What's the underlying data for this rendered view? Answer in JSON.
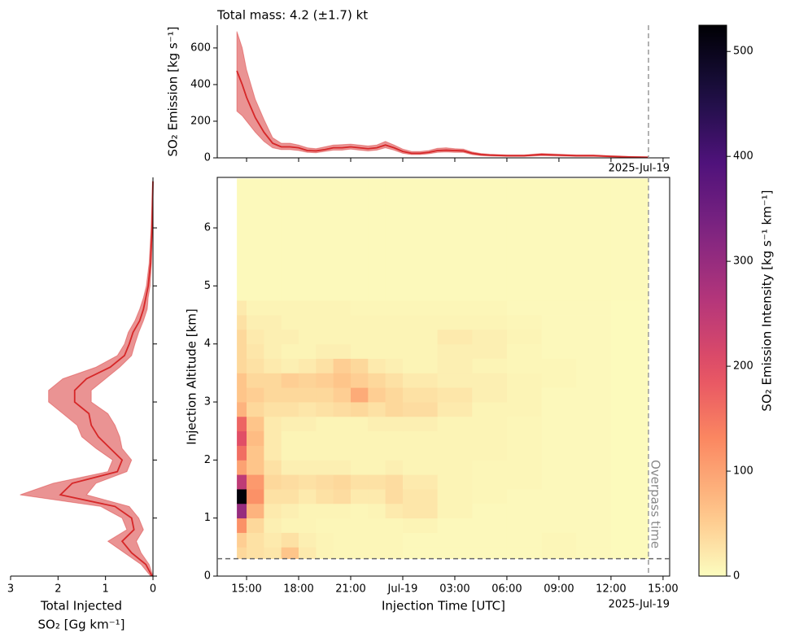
{
  "chart_data": [
    {
      "type": "line",
      "title": "Total mass: 4.2 (±1.7) kt",
      "ylabel": "SO₂ Emission [kg s⁻¹]",
      "x": [
        14.44,
        14.75,
        15.0,
        15.5,
        16.0,
        16.5,
        17.0,
        17.5,
        18.0,
        18.5,
        19.0,
        19.5,
        20.0,
        20.5,
        21.0,
        21.5,
        22.0,
        22.5,
        23.0,
        23.5,
        24.0,
        24.5,
        25.0,
        25.5,
        26.0,
        26.5,
        27.0,
        27.5,
        28.0,
        28.5,
        29.0,
        30.0,
        31.0,
        32.0,
        33.0,
        34.0,
        35.0,
        36.0,
        37.0,
        38.16
      ],
      "values": [
        475,
        400,
        330,
        220,
        140,
        80,
        60,
        60,
        55,
        40,
        38,
        45,
        55,
        55,
        60,
        55,
        50,
        55,
        70,
        55,
        35,
        25,
        25,
        30,
        40,
        42,
        40,
        38,
        25,
        18,
        15,
        12,
        12,
        18,
        15,
        12,
        12,
        8,
        5,
        3
      ],
      "lower": [
        255,
        230,
        200,
        140,
        90,
        55,
        45,
        45,
        40,
        30,
        28,
        35,
        42,
        42,
        48,
        42,
        38,
        42,
        55,
        42,
        25,
        18,
        18,
        22,
        30,
        32,
        30,
        30,
        18,
        12,
        10,
        8,
        8,
        12,
        10,
        8,
        8,
        5,
        3,
        2
      ],
      "upper": [
        690,
        600,
        480,
        320,
        210,
        110,
        80,
        80,
        70,
        55,
        50,
        60,
        70,
        72,
        75,
        70,
        65,
        70,
        90,
        70,
        48,
        35,
        35,
        40,
        52,
        55,
        50,
        48,
        32,
        24,
        20,
        16,
        16,
        24,
        20,
        16,
        16,
        11,
        8,
        5
      ],
      "color": "#d62728",
      "xlim": [
        13.31,
        39.38
      ],
      "ylim": [
        0,
        724
      ],
      "yticks": [
        0,
        200,
        400,
        600
      ],
      "x_offset_label": "2025-Jul-19",
      "vline": 38.16
    },
    {
      "type": "heatmap",
      "xlabel": "Injection Time [UTC]",
      "ylabel": "Injection Altitude [km]",
      "x_edges": [
        14.44,
        15,
        16,
        17,
        18,
        19,
        20,
        21,
        22,
        23,
        24,
        26,
        28,
        30,
        32,
        34,
        36,
        38.16
      ],
      "y_edges": [
        0.3,
        0.5,
        0.75,
        1.0,
        1.25,
        1.5,
        1.75,
        2.0,
        2.25,
        2.5,
        2.75,
        3.0,
        3.25,
        3.5,
        3.75,
        4.0,
        4.25,
        4.5,
        4.75,
        6.85
      ],
      "z": [
        [
          40,
          30,
          25,
          60,
          20,
          10,
          8,
          8,
          8,
          8,
          5,
          5,
          5,
          5,
          8,
          5,
          3
        ],
        [
          50,
          30,
          20,
          30,
          15,
          10,
          8,
          8,
          8,
          8,
          5,
          5,
          5,
          5,
          8,
          5,
          3
        ],
        [
          120,
          40,
          15,
          10,
          10,
          8,
          8,
          8,
          8,
          8,
          10,
          5,
          5,
          5,
          5,
          5,
          3
        ],
        [
          300,
          80,
          20,
          15,
          10,
          10,
          10,
          8,
          10,
          20,
          25,
          10,
          5,
          5,
          5,
          5,
          3
        ],
        [
          520,
          120,
          30,
          30,
          20,
          30,
          35,
          20,
          20,
          35,
          25,
          10,
          8,
          5,
          5,
          5,
          3
        ],
        [
          250,
          110,
          40,
          35,
          30,
          35,
          40,
          30,
          30,
          35,
          20,
          10,
          8,
          8,
          5,
          5,
          3
        ],
        [
          100,
          60,
          30,
          15,
          15,
          15,
          15,
          10,
          10,
          15,
          10,
          10,
          8,
          8,
          5,
          5,
          3
        ],
        [
          160,
          60,
          20,
          10,
          10,
          10,
          10,
          10,
          10,
          10,
          10,
          10,
          10,
          8,
          5,
          5,
          3
        ],
        [
          200,
          70,
          20,
          10,
          10,
          10,
          10,
          10,
          10,
          10,
          10,
          10,
          10,
          8,
          5,
          5,
          3
        ],
        [
          170,
          60,
          20,
          15,
          15,
          10,
          10,
          10,
          15,
          15,
          15,
          10,
          10,
          8,
          5,
          5,
          3
        ],
        [
          80,
          40,
          30,
          30,
          25,
          30,
          35,
          40,
          30,
          40,
          35,
          20,
          10,
          10,
          5,
          5,
          3
        ],
        [
          60,
          50,
          40,
          40,
          40,
          40,
          50,
          90,
          50,
          40,
          30,
          25,
          15,
          10,
          5,
          5,
          3
        ],
        [
          60,
          40,
          40,
          50,
          45,
          50,
          60,
          50,
          40,
          30,
          20,
          15,
          15,
          10,
          8,
          5,
          3
        ],
        [
          40,
          30,
          20,
          15,
          20,
          30,
          50,
          40,
          20,
          15,
          10,
          15,
          10,
          8,
          8,
          5,
          3
        ],
        [
          40,
          25,
          15,
          10,
          10,
          15,
          15,
          10,
          10,
          10,
          10,
          15,
          15,
          8,
          5,
          5,
          3
        ],
        [
          40,
          20,
          15,
          15,
          10,
          10,
          10,
          10,
          10,
          10,
          10,
          20,
          15,
          10,
          5,
          5,
          3
        ],
        [
          30,
          15,
          15,
          10,
          10,
          10,
          10,
          10,
          10,
          10,
          10,
          10,
          10,
          8,
          5,
          5,
          3
        ],
        [
          20,
          10,
          10,
          10,
          10,
          10,
          10,
          8,
          8,
          8,
          8,
          8,
          8,
          5,
          5,
          5,
          3
        ],
        [
          4,
          4,
          4,
          4,
          4,
          4,
          4,
          4,
          4,
          4,
          4,
          4,
          4,
          4,
          4,
          4,
          4
        ]
      ],
      "xlim": [
        13.31,
        39.38
      ],
      "ylim": [
        0,
        6.87
      ],
      "xticks": [
        {
          "value": 15,
          "label": "15:00"
        },
        {
          "value": 18,
          "label": "18:00"
        },
        {
          "value": 21,
          "label": "21:00"
        },
        {
          "value": 24,
          "label": "Jul-19"
        },
        {
          "value": 27,
          "label": "03:00"
        },
        {
          "value": 30,
          "label": "06:00"
        },
        {
          "value": 33,
          "label": "09:00"
        },
        {
          "value": 36,
          "label": "12:00"
        },
        {
          "value": 39,
          "label": "15:00"
        }
      ],
      "yticks": [
        0,
        1,
        2,
        3,
        4,
        5,
        6
      ],
      "x_offset_label": "2025-Jul-19",
      "vline": 38.16,
      "vline_label": "Overpass time",
      "hline": 0.3,
      "colormap": "magma_r",
      "clim": [
        0,
        525
      ],
      "cticks": [
        0,
        100,
        200,
        300,
        400,
        500
      ],
      "colorbar_label": "SO₂ Emission Intensity [kg s⁻¹ km⁻¹]"
    },
    {
      "type": "profile",
      "xlabel": [
        "Total Injected",
        "SO₂ [Gg km⁻¹]"
      ],
      "y": [
        0.0,
        0.2,
        0.4,
        0.6,
        0.8,
        1.0,
        1.2,
        1.4,
        1.6,
        1.8,
        2.0,
        2.2,
        2.4,
        2.6,
        2.8,
        3.0,
        3.2,
        3.4,
        3.6,
        3.8,
        4.0,
        4.2,
        4.4,
        4.6,
        4.8,
        5.0,
        5.4,
        6.0,
        6.8
      ],
      "values": [
        0.02,
        0.15,
        0.45,
        0.65,
        0.4,
        0.45,
        0.8,
        1.95,
        1.7,
        0.75,
        0.65,
        0.9,
        1.15,
        1.3,
        1.35,
        1.65,
        1.65,
        1.4,
        0.9,
        0.6,
        0.5,
        0.42,
        0.28,
        0.2,
        0.15,
        0.1,
        0.05,
        0.02,
        0.0
      ],
      "lower": [
        0.0,
        0.08,
        0.25,
        0.35,
        0.2,
        0.3,
        0.5,
        1.4,
        1.2,
        0.55,
        0.45,
        0.65,
        0.7,
        0.8,
        0.95,
        1.3,
        1.3,
        1.0,
        0.7,
        0.45,
        0.38,
        0.3,
        0.2,
        0.12,
        0.1,
        0.06,
        0.03,
        0.01,
        0.0
      ],
      "upper": [
        0.05,
        0.25,
        0.6,
        0.95,
        0.55,
        0.65,
        1.1,
        2.8,
        2.1,
        0.95,
        0.85,
        1.2,
        1.5,
        1.6,
        1.9,
        2.2,
        2.2,
        1.9,
        1.2,
        0.75,
        0.6,
        0.52,
        0.38,
        0.28,
        0.2,
        0.14,
        0.08,
        0.04,
        0.01
      ],
      "color": "#d62728",
      "xlim": [
        3,
        0
      ],
      "xticks": [
        3,
        2,
        1,
        0
      ]
    }
  ]
}
